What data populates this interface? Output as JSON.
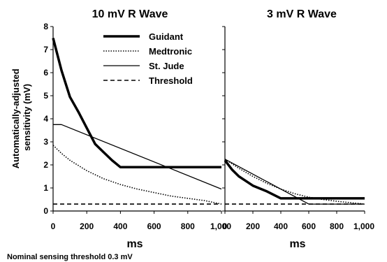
{
  "figure": {
    "footnote": "Nominal sensing threshold 0.3 mV",
    "ylabel_lines": [
      "Automatically-adjusted",
      "sensitivity (mV)"
    ]
  },
  "legend": [
    "Guidant",
    "Medtronic",
    "St. Jude",
    "Threshold"
  ],
  "chart_data": [
    {
      "type": "line",
      "title": "10 mV R Wave",
      "xlabel": "ms",
      "ylabel": "Automatically-adjusted sensitivity (mV)",
      "xlim": [
        0,
        1000
      ],
      "ylim": [
        0,
        8
      ],
      "xticks": [
        "0",
        "200",
        "400",
        "600",
        "800",
        "1,000"
      ],
      "yticks": [
        "0",
        "1",
        "2",
        "3",
        "4",
        "5",
        "6",
        "7",
        "8"
      ],
      "grid": false,
      "legend_position": "top-right",
      "series": [
        {
          "name": "Guidant",
          "style": "thick-solid",
          "x": [
            0,
            50,
            100,
            150,
            200,
            250,
            300,
            350,
            400,
            450,
            1000
          ],
          "y": [
            7.5,
            6.1,
            4.95,
            4.3,
            3.6,
            2.9,
            2.55,
            2.2,
            1.9,
            1.9,
            1.9
          ]
        },
        {
          "name": "Medtronic",
          "style": "dotted",
          "x": [
            0,
            50,
            100,
            200,
            300,
            400,
            500,
            600,
            700,
            800,
            900,
            1000
          ],
          "y": [
            2.85,
            2.5,
            2.2,
            1.75,
            1.4,
            1.15,
            0.95,
            0.8,
            0.65,
            0.55,
            0.45,
            0.3
          ]
        },
        {
          "name": "St. Jude",
          "style": "thin-solid",
          "x": [
            0,
            50,
            1000
          ],
          "y": [
            3.75,
            3.75,
            0.95
          ]
        },
        {
          "name": "Threshold",
          "style": "dashed",
          "x": [
            0,
            1000
          ],
          "y": [
            0.3,
            0.3
          ]
        }
      ]
    },
    {
      "type": "line",
      "title": "3 mV R Wave",
      "xlabel": "ms",
      "xlim": [
        0,
        1000
      ],
      "ylim": [
        0,
        8
      ],
      "xticks": [
        "0",
        "200",
        "400",
        "600",
        "800",
        "1,000"
      ],
      "grid": false,
      "series": [
        {
          "name": "Guidant",
          "style": "thick-solid",
          "x": [
            0,
            50,
            100,
            150,
            200,
            300,
            400,
            1000
          ],
          "y": [
            2.2,
            1.8,
            1.5,
            1.3,
            1.1,
            0.85,
            0.55,
            0.55
          ]
        },
        {
          "name": "Medtronic",
          "style": "dotted",
          "x": [
            0,
            100,
            200,
            300,
            400,
            500,
            600,
            700,
            800,
            900,
            1000
          ],
          "y": [
            2.25,
            1.85,
            1.5,
            1.2,
            0.95,
            0.75,
            0.6,
            0.5,
            0.42,
            0.36,
            0.3
          ]
        },
        {
          "name": "St. Jude",
          "style": "thin-solid",
          "x": [
            0,
            600,
            1000
          ],
          "y": [
            2.25,
            0.3,
            0.3
          ]
        },
        {
          "name": "Threshold",
          "style": "dashed",
          "x": [
            0,
            1000
          ],
          "y": [
            0.3,
            0.3
          ]
        }
      ]
    }
  ]
}
